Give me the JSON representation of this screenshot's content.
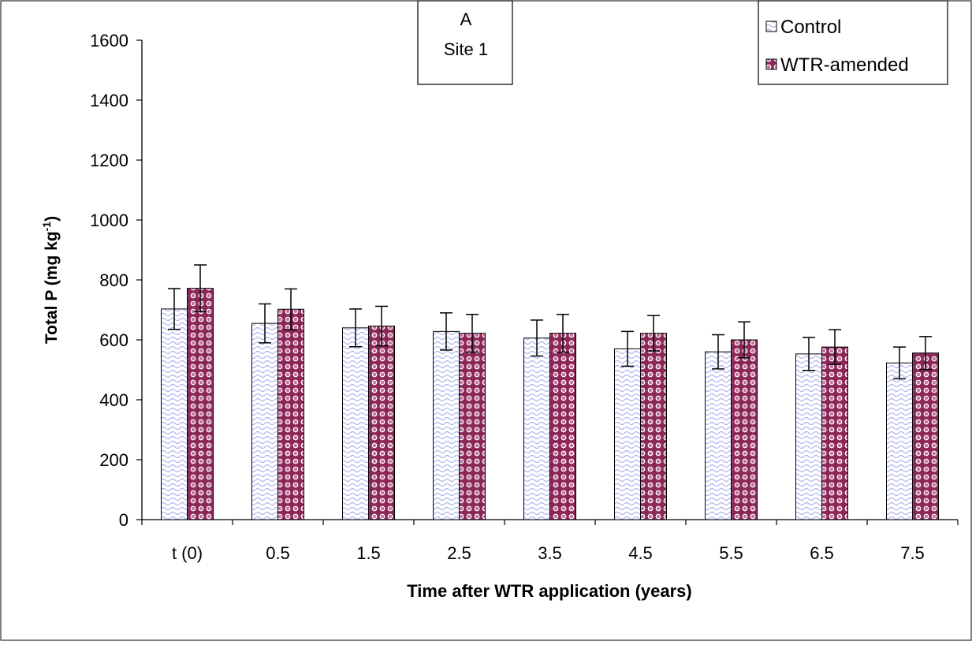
{
  "chart_data": {
    "type": "bar",
    "panel_label": "A",
    "site_label": "Site 1",
    "xlabel": "Time after WTR application (years)",
    "ylabel_main": "Total P (mg kg",
    "ylabel_exponent": "-1",
    "ylabel_close": ")",
    "ylim": [
      0,
      1600
    ],
    "yticks": [
      "0",
      "200",
      "400",
      "600",
      "800",
      "1000",
      "1200",
      "1400",
      "1600"
    ],
    "categories": [
      "t (0)",
      "0.5",
      "1.5",
      "2.5",
      "3.5",
      "4.5",
      "5.5",
      "6.5",
      "7.5"
    ],
    "legend_position": "top-right",
    "grid": false,
    "series": [
      {
        "name": "Control",
        "color": "#b8bff0",
        "pattern": "wave",
        "values": [
          703,
          655,
          640,
          628,
          606,
          570,
          560,
          553,
          523
        ],
        "error": [
          68,
          65,
          63,
          62,
          60,
          58,
          57,
          55,
          53
        ]
      },
      {
        "name": "WTR-amended",
        "color": "#993366",
        "pattern": "dots",
        "values": [
          772,
          702,
          646,
          622,
          622,
          622,
          600,
          576,
          556
        ],
        "error": [
          78,
          68,
          66,
          63,
          63,
          59,
          60,
          58,
          55
        ]
      }
    ]
  }
}
